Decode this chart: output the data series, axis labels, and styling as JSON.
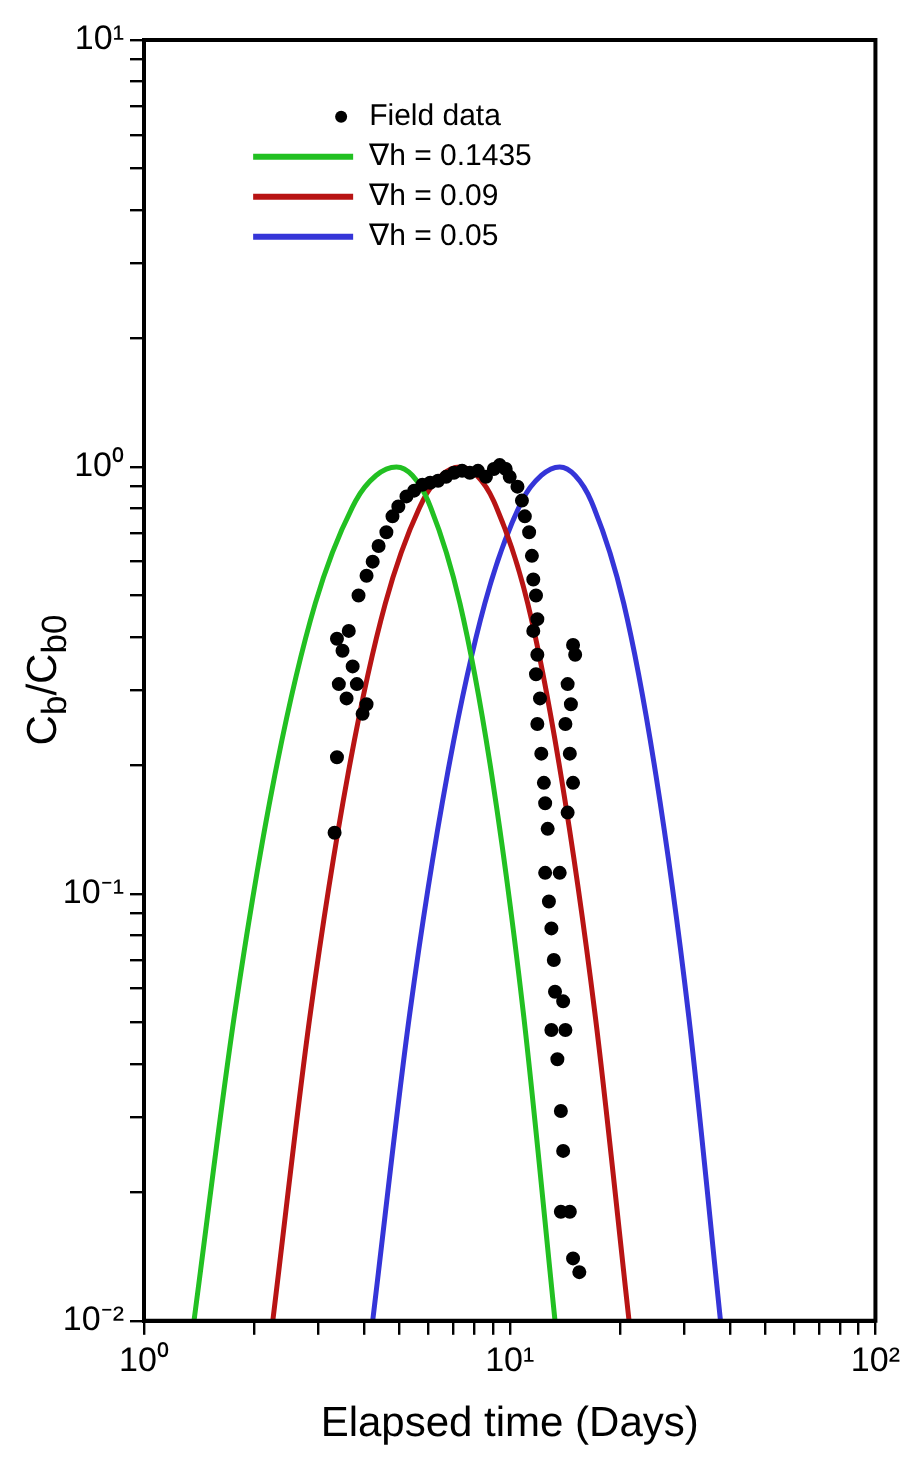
{
  "chart_data": {
    "type": "line",
    "xlabel": "Elapsed time (Days)",
    "ylabel": "C$_{b}$/C$_{b0}$",
    "log": "xy",
    "legend": "top left",
    "xlim": [
      1,
      100
    ],
    "ylim": [
      0.01,
      10
    ],
    "xticks": [
      {
        "value": 1,
        "label": "10⁰"
      },
      {
        "value": 2,
        "label": null
      },
      {
        "value": 3,
        "label": null
      },
      {
        "value": 4,
        "label": null
      },
      {
        "value": 5,
        "label": null
      },
      {
        "value": 6,
        "label": null
      },
      {
        "value": 7,
        "label": null
      },
      {
        "value": 8,
        "label": null
      },
      {
        "value": 9,
        "label": null
      },
      {
        "value": 10,
        "label": "10¹"
      },
      {
        "value": 20,
        "label": null
      },
      {
        "value": 30,
        "label": null
      },
      {
        "value": 40,
        "label": null
      },
      {
        "value": 50,
        "label": null
      },
      {
        "value": 60,
        "label": null
      },
      {
        "value": 70,
        "label": null
      },
      {
        "value": 80,
        "label": null
      },
      {
        "value": 90,
        "label": null
      },
      {
        "value": 100,
        "label": "10²"
      }
    ],
    "yticks": [
      {
        "value": 0.01,
        "label": "10⁻²"
      },
      {
        "value": 0.02,
        "label": null
      },
      {
        "value": 0.03,
        "label": null
      },
      {
        "value": 0.04,
        "label": null
      },
      {
        "value": 0.05,
        "label": null
      },
      {
        "value": 0.06,
        "label": null
      },
      {
        "value": 0.07,
        "label": null
      },
      {
        "value": 0.08,
        "label": null
      },
      {
        "value": 0.09,
        "label": null
      },
      {
        "value": 0.1,
        "label": "10⁻¹"
      },
      {
        "value": 0.2,
        "label": null
      },
      {
        "value": 0.3,
        "label": null
      },
      {
        "value": 0.4,
        "label": null
      },
      {
        "value": 0.5,
        "label": null
      },
      {
        "value": 0.6,
        "label": null
      },
      {
        "value": 0.7,
        "label": null
      },
      {
        "value": 0.8,
        "label": null
      },
      {
        "value": 0.9,
        "label": null
      },
      {
        "value": 1,
        "label": "10⁰"
      },
      {
        "value": 2,
        "label": null
      },
      {
        "value": 3,
        "label": null
      },
      {
        "value": 4,
        "label": null
      },
      {
        "value": 5,
        "label": null
      },
      {
        "value": 6,
        "label": null
      },
      {
        "value": 7,
        "label": null
      },
      {
        "value": 8,
        "label": null
      },
      {
        "value": 9,
        "label": null
      },
      {
        "value": 10,
        "label": "10¹"
      }
    ],
    "series": [
      {
        "name": "Field data",
        "type": "scatter",
        "marker": "circle",
        "color": "#000000",
        "x": [
          3.37,
          3.49,
          3.63,
          3.72,
          3.41,
          3.58,
          3.82,
          3.96,
          4.06,
          3.37,
          3.32,
          3.86,
          4.06,
          4.22,
          4.38,
          4.6,
          4.78,
          4.96,
          5.22,
          5.48,
          5.77,
          6.06,
          6.37,
          6.7,
          7.04,
          7.41,
          7.78,
          8.19,
          8.61,
          9.05,
          9.39,
          9.75,
          10,
          10.5,
          10.8,
          11,
          11.3,
          11.5,
          11.6,
          11.8,
          11.9,
          11.6,
          11.9,
          11.8,
          12.1,
          11.9,
          12.2,
          12.4,
          12.5,
          12.7,
          12.5,
          12.8,
          13,
          13.2,
          13.3,
          13,
          13.5,
          13.8,
          14,
          14.6,
          14.9,
          15.5,
          13.8,
          14.2,
          13.7,
          14.4,
          14.9,
          14.6,
          14.2,
          14.7,
          14.4,
          15.1,
          14.9,
          14
        ],
        "values": [
          0.396,
          0.371,
          0.413,
          0.341,
          0.31,
          0.287,
          0.31,
          0.264,
          0.278,
          0.209,
          0.139,
          0.5,
          0.556,
          0.6,
          0.653,
          0.703,
          0.766,
          0.808,
          0.853,
          0.88,
          0.908,
          0.918,
          0.928,
          0.948,
          0.969,
          0.979,
          0.969,
          0.979,
          0.948,
          0.989,
          1.01,
          0.989,
          0.948,
          0.899,
          0.834,
          0.766,
          0.703,
          0.619,
          0.545,
          0.5,
          0.44,
          0.413,
          0.363,
          0.327,
          0.287,
          0.25,
          0.213,
          0.182,
          0.163,
          0.142,
          0.112,
          0.096,
          0.083,
          0.07,
          0.059,
          0.048,
          0.041,
          0.031,
          0.025,
          0.018,
          0.014,
          0.013,
          0.018,
          0.048,
          0.112,
          0.155,
          0.182,
          0.213,
          0.25,
          0.278,
          0.31,
          0.363,
          0.383,
          0.056
        ]
      },
      {
        "name": "∇h = 0.1435",
        "color": "#22c022",
        "line_style": "solid",
        "x": [
          1.37,
          1.77,
          2.28,
          2.94,
          3.79,
          4.31,
          4.9,
          5.42,
          5.98,
          7.31,
          8.93,
          10.9,
          13.3
        ],
        "values": [
          0.01,
          0.0525,
          0.19,
          0.479,
          0.832,
          0.955,
          1,
          0.955,
          0.832,
          0.479,
          0.19,
          0.0525,
          0.01
        ]
      },
      {
        "name": "∇h = 0.09",
        "color": "#b81414",
        "line_style": "solid",
        "x": [
          2.25,
          2.85,
          3.61,
          4.57,
          5.78,
          6.5,
          7.31,
          8.13,
          9.04,
          11.2,
          13.8,
          17.1,
          21.2
        ],
        "values": [
          0.01,
          0.0525,
          0.19,
          0.479,
          0.832,
          0.955,
          1,
          0.955,
          0.832,
          0.479,
          0.19,
          0.0525,
          0.01
        ]
      },
      {
        "name": "∇h = 0.05",
        "color": "#3535d8",
        "line_style": "solid",
        "x": [
          4.22,
          5.33,
          6.75,
          8.55,
          10.8,
          12.2,
          13.7,
          15.1,
          16.7,
          20.5,
          25.1,
          30.8,
          37.7
        ],
        "values": [
          0.01,
          0.0525,
          0.19,
          0.479,
          0.832,
          0.955,
          1,
          0.955,
          0.832,
          0.479,
          0.19,
          0.0525,
          0.01
        ]
      }
    ]
  }
}
